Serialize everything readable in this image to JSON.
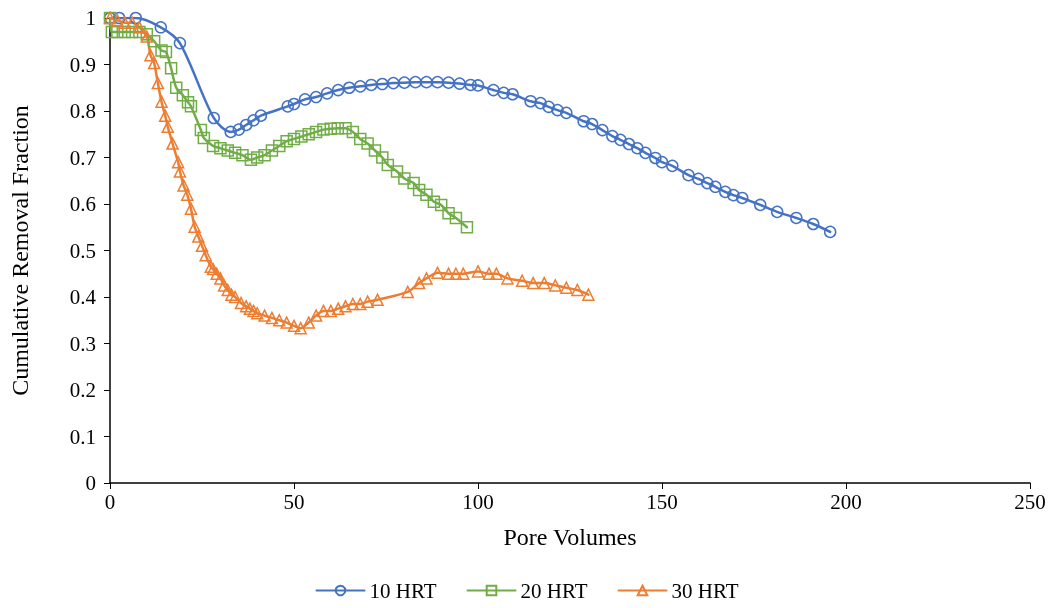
{
  "chart_data": {
    "type": "line",
    "xlabel": "Pore Volumes",
    "ylabel": "Cumulative Removal Fraction",
    "xlim": [
      0,
      250
    ],
    "xticks": [
      0,
      50,
      100,
      150,
      200,
      250
    ],
    "ylim": [
      0,
      1
    ],
    "yticks": [
      0,
      0.1,
      0.2,
      0.3,
      0.4,
      0.5,
      0.6,
      0.7,
      0.8,
      0.9,
      1
    ],
    "grid": false,
    "legend": "bottom",
    "line_style": "solid",
    "series": [
      {
        "name": "10 HRT",
        "color": "#4472c4",
        "marker": "circle",
        "x": [
          0,
          2.5,
          7,
          13.8,
          19,
          28.2,
          32.8,
          35,
          37,
          39,
          41,
          48.3,
          50,
          53,
          56,
          59,
          62,
          65,
          68,
          71,
          74,
          77,
          80,
          83,
          86,
          89,
          92,
          95,
          98,
          100,
          104.2,
          107,
          109.4,
          114.3,
          117,
          119.2,
          121.6,
          124,
          128.7,
          131,
          133.8,
          136.5,
          138.7,
          141,
          143.3,
          145.5,
          148.2,
          150,
          152.8,
          157.2,
          159.9,
          162.3,
          164.5,
          167.2,
          169.4,
          171.8,
          176.7,
          181.3,
          186.5,
          191.1,
          195.7
        ],
        "values": [
          1,
          1,
          1,
          0.98,
          0.946,
          0.785,
          0.755,
          0.76,
          0.77,
          0.78,
          0.79,
          0.81,
          0.815,
          0.825,
          0.83,
          0.838,
          0.845,
          0.85,
          0.853,
          0.856,
          0.858,
          0.86,
          0.861,
          0.862,
          0.862,
          0.862,
          0.861,
          0.859,
          0.856,
          0.855,
          0.845,
          0.839,
          0.836,
          0.821,
          0.817,
          0.809,
          0.802,
          0.796,
          0.778,
          0.772,
          0.759,
          0.746,
          0.738,
          0.729,
          0.72,
          0.71,
          0.699,
          0.69,
          0.682,
          0.662,
          0.654,
          0.645,
          0.637,
          0.626,
          0.619,
          0.613,
          0.598,
          0.583,
          0.57,
          0.557,
          0.54
        ]
      },
      {
        "name": "20 HRT",
        "color": "#70ad47",
        "marker": "square",
        "x": [
          0,
          0.5,
          2,
          4,
          6,
          8,
          10,
          12,
          14,
          15.2,
          16.6,
          18,
          19.8,
          21.2,
          22,
          24.7,
          25.5,
          28,
          30,
          32,
          34,
          36,
          38.3,
          40,
          42,
          44,
          46,
          48,
          50,
          52,
          54,
          56,
          58,
          60,
          61.9,
          64,
          66,
          68,
          70,
          72,
          74,
          75.5,
          78,
          80,
          82.5,
          84,
          86,
          88,
          90,
          92,
          94,
          97
        ],
        "values": [
          1,
          0.97,
          0.97,
          0.97,
          0.97,
          0.97,
          0.965,
          0.95,
          0.93,
          0.927,
          0.892,
          0.85,
          0.834,
          0.819,
          0.81,
          0.759,
          0.742,
          0.725,
          0.72,
          0.715,
          0.71,
          0.705,
          0.695,
          0.7,
          0.705,
          0.715,
          0.725,
          0.735,
          0.74,
          0.745,
          0.75,
          0.755,
          0.76,
          0.762,
          0.763,
          0.763,
          0.755,
          0.74,
          0.73,
          0.715,
          0.7,
          0.684,
          0.67,
          0.655,
          0.645,
          0.63,
          0.62,
          0.605,
          0.598,
          0.58,
          0.57,
          0.55
        ]
      },
      {
        "name": "30 HRT",
        "color": "#ed7d31",
        "marker": "triangle",
        "x": [
          0,
          2,
          4,
          6,
          8,
          10,
          11,
          12,
          13,
          14,
          15,
          15.7,
          17,
          18.5,
          19,
          20,
          21,
          22,
          23,
          24,
          25,
          26,
          27.4,
          28,
          29,
          30,
          31,
          32,
          33,
          34,
          35.6,
          37,
          38,
          39,
          40,
          42,
          44,
          46,
          48,
          50,
          51.8,
          54,
          56,
          58,
          60,
          62,
          64,
          66,
          68,
          70,
          72.7,
          80.9,
          84,
          86,
          89,
          92,
          94,
          96,
          100,
          103,
          105,
          108,
          112,
          115,
          118,
          121,
          124,
          127,
          130
        ],
        "values": [
          1,
          0.995,
          0.99,
          0.99,
          0.98,
          0.96,
          0.92,
          0.903,
          0.86,
          0.82,
          0.79,
          0.766,
          0.73,
          0.69,
          0.67,
          0.64,
          0.62,
          0.59,
          0.551,
          0.53,
          0.51,
          0.49,
          0.465,
          0.46,
          0.45,
          0.44,
          0.425,
          0.415,
          0.405,
          0.4,
          0.387,
          0.38,
          0.375,
          0.37,
          0.365,
          0.36,
          0.355,
          0.35,
          0.345,
          0.338,
          0.333,
          0.345,
          0.36,
          0.37,
          0.37,
          0.375,
          0.38,
          0.385,
          0.385,
          0.39,
          0.394,
          0.411,
          0.43,
          0.44,
          0.452,
          0.45,
          0.45,
          0.45,
          0.455,
          0.45,
          0.45,
          0.44,
          0.435,
          0.43,
          0.43,
          0.425,
          0.42,
          0.415,
          0.405
        ]
      }
    ]
  }
}
